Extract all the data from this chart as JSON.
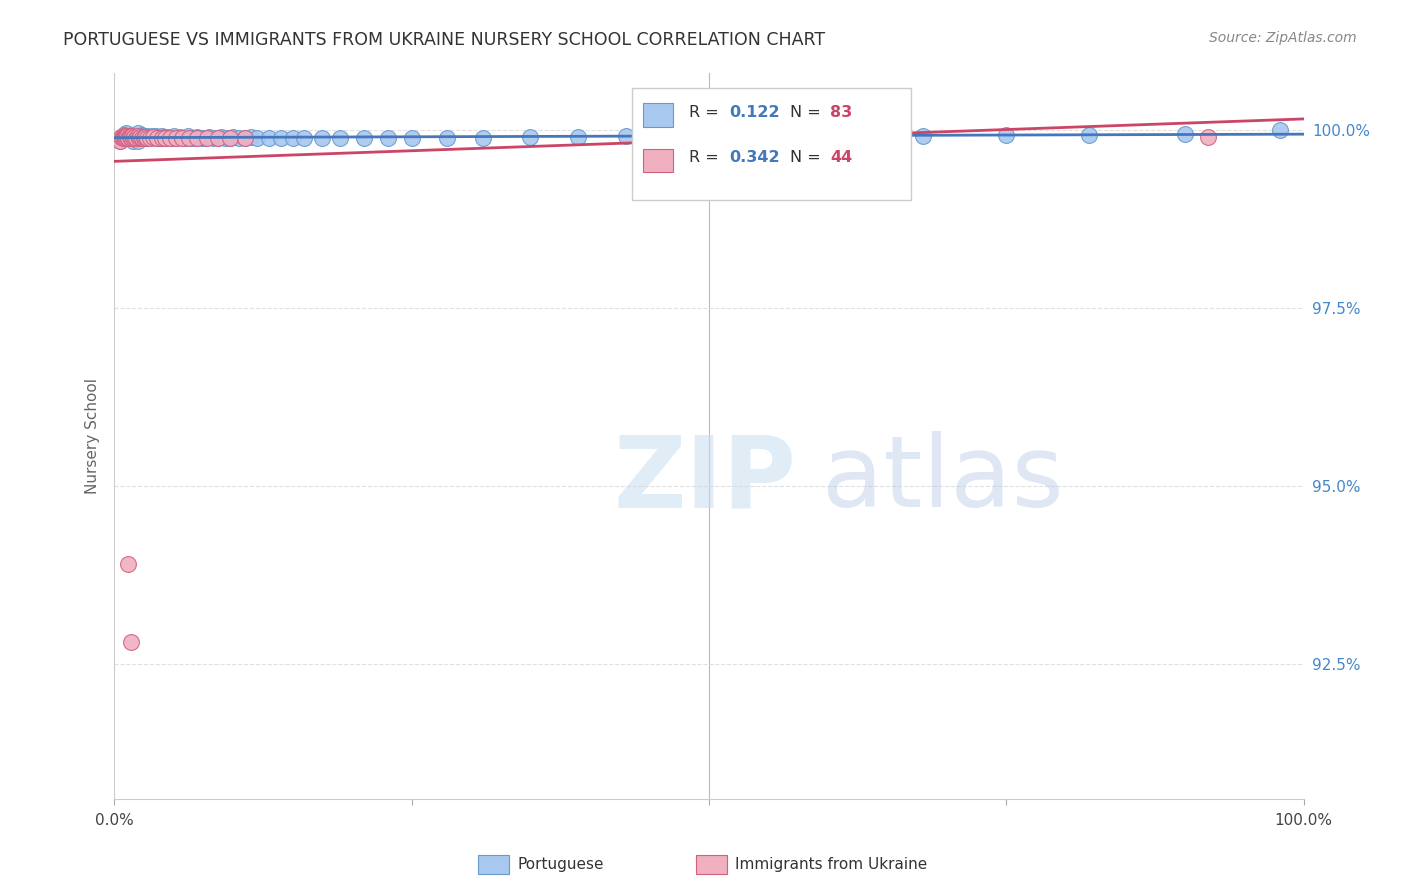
{
  "title": "PORTUGUESE VS IMMIGRANTS FROM UKRAINE NURSERY SCHOOL CORRELATION CHART",
  "source": "Source: ZipAtlas.com",
  "ylabel": "Nursery School",
  "xlim": [
    0.0,
    1.0
  ],
  "ylim": [
    0.906,
    1.008
  ],
  "yticks": [
    0.925,
    0.95,
    0.975,
    1.0
  ],
  "ytick_labels": [
    "92.5%",
    "95.0%",
    "97.5%",
    "100.0%"
  ],
  "watermark_zip": "ZIP",
  "watermark_atlas": "atlas",
  "blue_color": "#a8c8f0",
  "blue_edge_color": "#6699cc",
  "pink_color": "#f0b0c0",
  "pink_edge_color": "#d06080",
  "blue_line_color": "#4477bb",
  "pink_line_color": "#cc4466",
  "title_color": "#333333",
  "source_color": "#888888",
  "axis_label_color": "#666666",
  "tick_color_right": "#4488cc",
  "grid_color": "#e0e0e0",
  "r_val1": "0.122",
  "n_val1": "83",
  "r_val2": "0.342",
  "n_val2": "44",
  "portuguese_x": [
    0.005,
    0.008,
    0.01,
    0.01,
    0.012,
    0.013,
    0.015,
    0.015,
    0.016,
    0.017,
    0.018,
    0.018,
    0.02,
    0.02,
    0.02,
    0.021,
    0.022,
    0.022,
    0.023,
    0.024,
    0.025,
    0.025,
    0.026,
    0.028,
    0.028,
    0.03,
    0.03,
    0.032,
    0.033,
    0.035,
    0.035,
    0.037,
    0.038,
    0.04,
    0.04,
    0.042,
    0.043,
    0.045,
    0.048,
    0.05,
    0.052,
    0.055,
    0.058,
    0.06,
    0.062,
    0.065,
    0.068,
    0.07,
    0.073,
    0.076,
    0.08,
    0.083,
    0.087,
    0.09,
    0.093,
    0.097,
    0.1,
    0.105,
    0.11,
    0.115,
    0.12,
    0.13,
    0.14,
    0.15,
    0.16,
    0.175,
    0.19,
    0.21,
    0.23,
    0.25,
    0.28,
    0.31,
    0.35,
    0.39,
    0.43,
    0.48,
    0.54,
    0.6,
    0.68,
    0.75,
    0.82,
    0.9,
    0.98
  ],
  "portuguese_y": [
    0.9985,
    0.999,
    0.9995,
    0.999,
    0.9988,
    0.9992,
    0.9993,
    0.9988,
    0.9985,
    0.999,
    0.9992,
    0.9988,
    0.9995,
    0.999,
    0.9985,
    0.9992,
    0.999,
    0.9988,
    0.9993,
    0.9991,
    0.999,
    0.9988,
    0.9992,
    0.9989,
    0.9991,
    0.999,
    0.9988,
    0.9991,
    0.999,
    0.9989,
    0.9991,
    0.999,
    0.9988,
    0.9991,
    0.9989,
    0.999,
    0.9988,
    0.999,
    0.9989,
    0.9991,
    0.9988,
    0.999,
    0.9988,
    0.9989,
    0.9991,
    0.9989,
    0.9988,
    0.999,
    0.9989,
    0.9988,
    0.999,
    0.9988,
    0.9989,
    0.999,
    0.9989,
    0.9988,
    0.999,
    0.9989,
    0.9988,
    0.999,
    0.9989,
    0.9988,
    0.9989,
    0.9988,
    0.9989,
    0.9988,
    0.9989,
    0.9989,
    0.9989,
    0.9989,
    0.9989,
    0.9989,
    0.999,
    0.999,
    0.9991,
    0.999,
    0.9991,
    0.9991,
    0.9992,
    0.9993,
    0.9993,
    0.9994,
    1.0
  ],
  "ukraine_x": [
    0.005,
    0.006,
    0.007,
    0.007,
    0.008,
    0.008,
    0.009,
    0.009,
    0.01,
    0.01,
    0.011,
    0.012,
    0.013,
    0.013,
    0.014,
    0.015,
    0.016,
    0.017,
    0.018,
    0.02,
    0.021,
    0.022,
    0.023,
    0.025,
    0.026,
    0.028,
    0.03,
    0.033,
    0.036,
    0.04,
    0.043,
    0.047,
    0.052,
    0.057,
    0.063,
    0.07,
    0.078,
    0.087,
    0.097,
    0.11,
    0.012,
    0.014,
    0.6,
    0.92
  ],
  "ukraine_y": [
    0.9985,
    0.999,
    0.9992,
    0.9988,
    0.9993,
    0.999,
    0.9991,
    0.9988,
    0.9992,
    0.999,
    0.9991,
    0.9988,
    0.9992,
    0.999,
    0.9989,
    0.9991,
    0.9988,
    0.999,
    0.9989,
    0.9991,
    0.9988,
    0.999,
    0.9989,
    0.9988,
    0.999,
    0.9989,
    0.9988,
    0.999,
    0.9988,
    0.9989,
    0.9988,
    0.9989,
    0.9988,
    0.9989,
    0.9988,
    0.9989,
    0.9988,
    0.9989,
    0.9988,
    0.9989,
    0.939,
    0.928,
    0.999,
    0.999
  ]
}
